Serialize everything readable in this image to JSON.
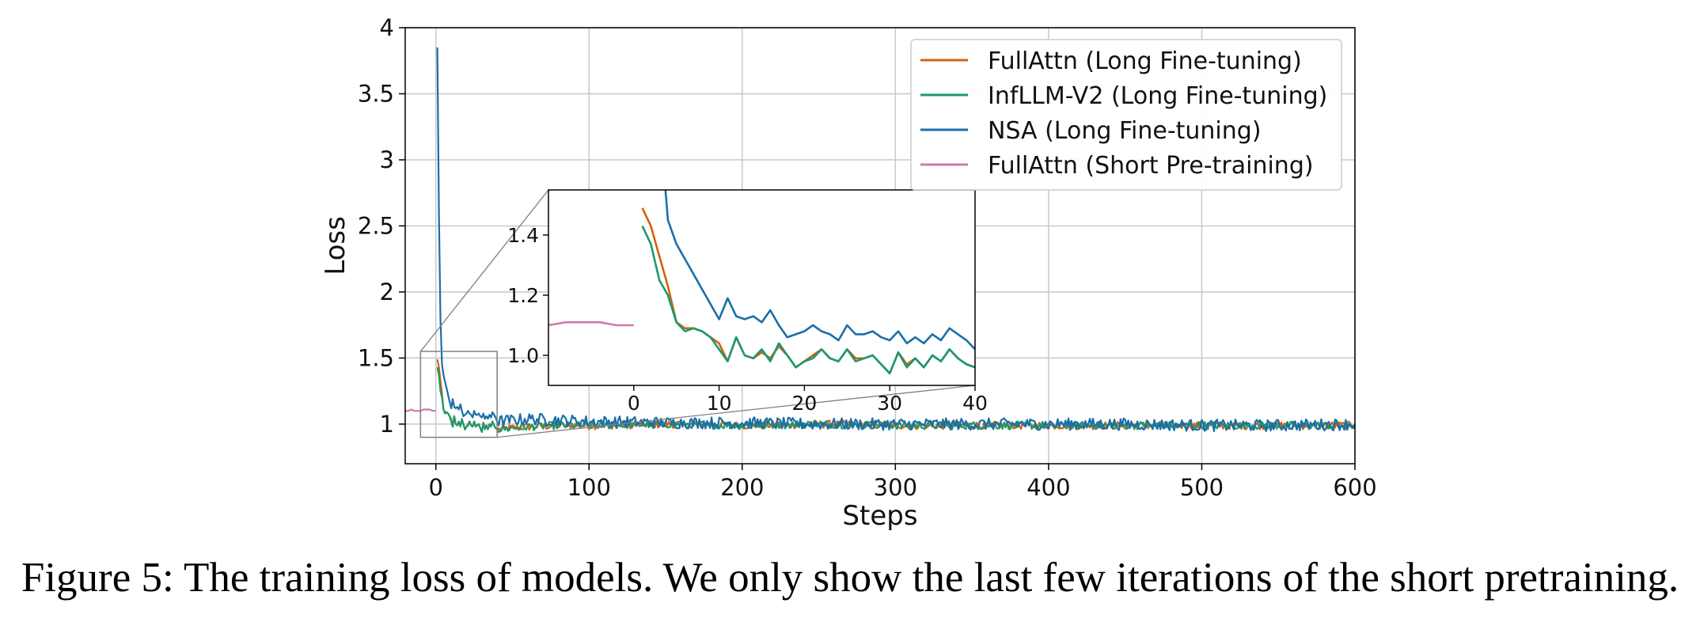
{
  "caption": "Figure 5: The training loss of models. We only show the last few iterations of the short pretraining.",
  "chart_data": {
    "type": "line",
    "xlabel": "Steps",
    "ylabel": "Loss",
    "xlim": [
      -20,
      600
    ],
    "ylim": [
      0.7,
      4.0
    ],
    "xticks": [
      0,
      100,
      200,
      300,
      400,
      500,
      600
    ],
    "yticks": [
      1,
      1.5,
      2,
      2.5,
      3,
      3.5,
      4
    ],
    "ytick_labels": [
      "1",
      "1.5",
      "2",
      "2.5",
      "3",
      "3.5",
      "4"
    ],
    "grid": true,
    "legend_position": "upper-right",
    "colors": {
      "FullAttn (Long Fine-tuning)": "#d4600f",
      "InfLLM-V2 (Long Fine-tuning)": "#1a9a6c",
      "NSA (Long Fine-tuning)": "#1a6fa8",
      "FullAttn (Short Pre-training)": "#cf79ae"
    },
    "series": [
      {
        "name": "FullAttn (Long Fine-tuning)",
        "x": [
          1,
          2,
          3,
          4,
          5,
          6,
          7,
          8,
          9,
          10,
          11,
          12,
          13,
          14,
          15,
          16,
          17,
          18,
          19,
          20,
          21,
          22,
          23,
          24,
          25,
          26,
          27,
          28,
          29,
          30,
          31,
          32,
          33,
          34,
          35,
          36,
          37,
          38,
          39,
          40,
          60,
          80,
          100,
          150,
          200,
          250,
          300,
          350,
          400,
          450,
          500,
          550,
          600
        ],
        "y": [
          1.49,
          1.43,
          1.33,
          1.23,
          1.11,
          1.09,
          1.09,
          1.08,
          1.06,
          1.04,
          0.98,
          1.06,
          1.0,
          0.99,
          1.01,
          0.99,
          1.03,
          1.0,
          0.96,
          0.98,
          1.0,
          1.02,
          0.99,
          0.98,
          1.02,
          0.99,
          0.99,
          1.0,
          0.97,
          0.94,
          1.01,
          0.97,
          0.99,
          0.96,
          1.0,
          0.98,
          1.02,
          0.99,
          0.97,
          0.96,
          0.98,
          0.99,
          0.99,
          1.0,
          0.99,
          1.0,
          0.99,
          0.99,
          0.99,
          0.99,
          0.99,
          0.99,
          0.99
        ]
      },
      {
        "name": "InfLLM-V2 (Long Fine-tuning)",
        "x": [
          1,
          2,
          3,
          4,
          5,
          6,
          7,
          8,
          9,
          10,
          11,
          12,
          13,
          14,
          15,
          16,
          17,
          18,
          19,
          20,
          21,
          22,
          23,
          24,
          25,
          26,
          27,
          28,
          29,
          30,
          31,
          32,
          33,
          34,
          35,
          36,
          37,
          38,
          39,
          40,
          60,
          80,
          100,
          150,
          200,
          250,
          300,
          350,
          400,
          450,
          500,
          550,
          600
        ],
        "y": [
          1.43,
          1.37,
          1.25,
          1.2,
          1.11,
          1.08,
          1.09,
          1.08,
          1.06,
          1.02,
          0.98,
          1.06,
          1.0,
          0.99,
          1.02,
          0.98,
          1.04,
          1.0,
          0.96,
          0.98,
          0.99,
          1.02,
          0.99,
          0.98,
          1.02,
          0.98,
          0.99,
          1.0,
          0.97,
          0.94,
          1.01,
          0.96,
          0.99,
          0.96,
          1.0,
          0.98,
          1.02,
          0.99,
          0.97,
          0.96,
          0.98,
          0.99,
          0.99,
          1.0,
          0.99,
          1.0,
          0.99,
          0.99,
          0.99,
          0.99,
          0.99,
          0.99,
          0.99
        ]
      },
      {
        "name": "NSA (Long Fine-tuning)",
        "x": [
          1,
          2,
          3,
          4,
          5,
          6,
          7,
          8,
          9,
          10,
          11,
          12,
          13,
          14,
          15,
          16,
          17,
          18,
          19,
          20,
          21,
          22,
          23,
          24,
          25,
          26,
          27,
          28,
          29,
          30,
          31,
          32,
          33,
          34,
          35,
          36,
          37,
          38,
          39,
          40,
          60,
          80,
          100,
          150,
          200,
          250,
          300,
          350,
          400,
          450,
          500,
          550,
          600
        ],
        "y": [
          3.85,
          2.6,
          1.8,
          1.45,
          1.37,
          1.32,
          1.27,
          1.22,
          1.17,
          1.12,
          1.19,
          1.13,
          1.12,
          1.13,
          1.11,
          1.15,
          1.1,
          1.06,
          1.07,
          1.08,
          1.1,
          1.08,
          1.07,
          1.05,
          1.1,
          1.07,
          1.07,
          1.08,
          1.06,
          1.05,
          1.08,
          1.04,
          1.06,
          1.04,
          1.07,
          1.05,
          1.09,
          1.07,
          1.05,
          1.02,
          1.04,
          1.03,
          1.02,
          1.01,
          1.01,
          1.0,
          1.0,
          1.0,
          1.0,
          1.0,
          0.99,
          0.99,
          1.0
        ]
      },
      {
        "name": "FullAttn (Short Pre-training)",
        "x": [
          -20,
          -18,
          -16,
          -14,
          -12,
          -10,
          -8,
          -6,
          -4,
          -2,
          0
        ],
        "y": [
          1.1,
          1.1,
          1.11,
          1.1,
          1.1,
          1.1,
          1.11,
          1.11,
          1.11,
          1.1,
          1.1
        ]
      }
    ],
    "inset": {
      "xlim": [
        -10,
        40
      ],
      "ylim": [
        0.9,
        1.55
      ],
      "xticks": [
        0,
        10,
        20,
        30,
        40
      ],
      "yticks": [
        1.0,
        1.2,
        1.4
      ],
      "ytick_labels": [
        "1.0",
        "1.2",
        "1.4"
      ],
      "zoom_region": {
        "x": [
          -10,
          40
        ],
        "y": [
          0.9,
          1.55
        ]
      }
    }
  }
}
